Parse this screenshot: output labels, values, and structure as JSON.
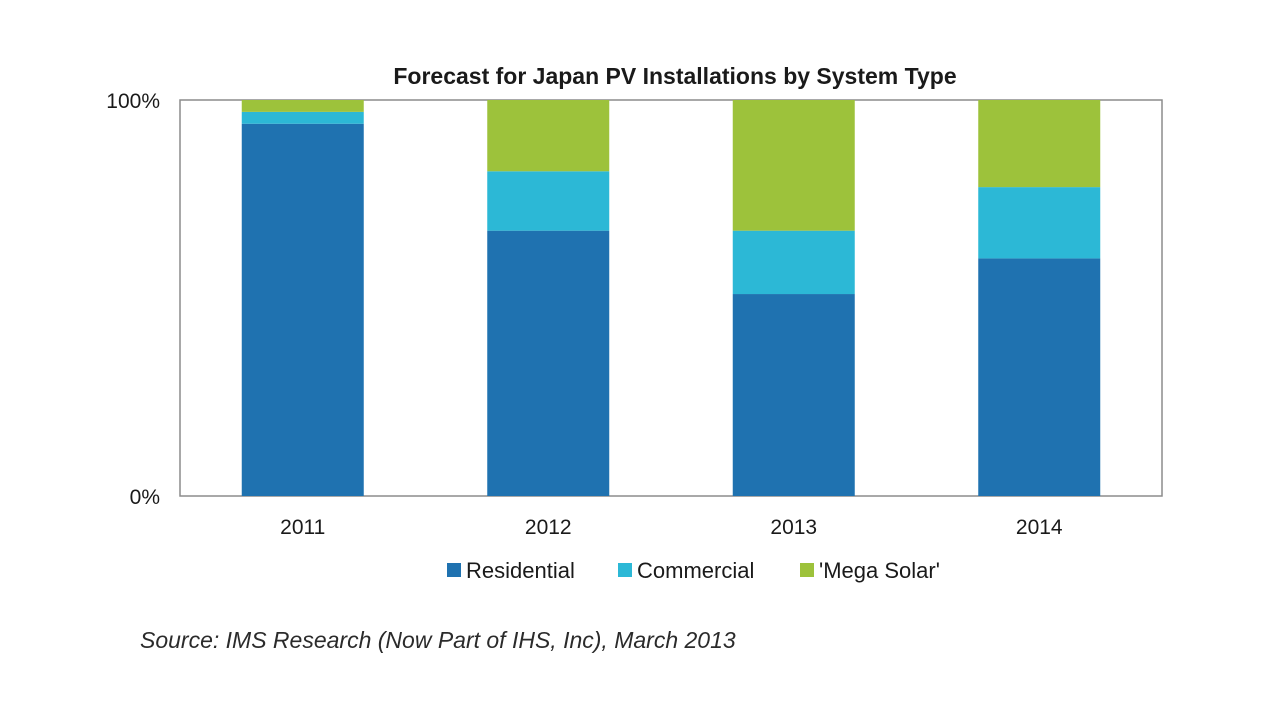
{
  "chart_data": {
    "type": "bar",
    "stacked": true,
    "normalized": true,
    "title": "Forecast for Japan PV Installations by System Type",
    "categories": [
      "2011",
      "2012",
      "2013",
      "2014"
    ],
    "series": [
      {
        "name": "Residential",
        "color": "#1f72b0",
        "values": [
          94,
          67,
          51,
          60
        ]
      },
      {
        "name": "Commercial",
        "color": "#2cb8d6",
        "values": [
          3,
          15,
          16,
          18
        ]
      },
      {
        "name": "'Mega Solar'",
        "color": "#9dc23b",
        "values": [
          3,
          18,
          33,
          22
        ]
      }
    ],
    "y_ticks": [
      "0%",
      "100%"
    ],
    "ylim": [
      0,
      100
    ],
    "legend_position": "bottom",
    "grid": false
  },
  "source": "Source: IMS Research (Now Part of IHS, Inc), March 2013"
}
